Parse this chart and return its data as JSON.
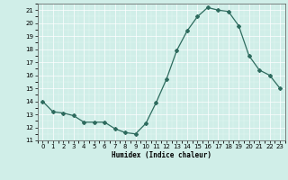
{
  "x": [
    0,
    1,
    2,
    3,
    4,
    5,
    6,
    7,
    8,
    9,
    10,
    11,
    12,
    13,
    14,
    15,
    16,
    17,
    18,
    19,
    20,
    21,
    22,
    23
  ],
  "y": [
    14,
    13.2,
    13.1,
    12.9,
    12.4,
    12.4,
    12.4,
    11.9,
    11.6,
    11.5,
    12.3,
    13.9,
    15.7,
    17.9,
    19.4,
    20.5,
    21.2,
    21.0,
    20.9,
    19.8,
    17.5,
    16.4,
    16.0,
    15.0
  ],
  "xlabel": "Humidex (Indice chaleur)",
  "ylim": [
    11,
    21.5
  ],
  "xlim": [
    -0.5,
    23.5
  ],
  "yticks": [
    11,
    12,
    13,
    14,
    15,
    16,
    17,
    18,
    19,
    20,
    21
  ],
  "xticks": [
    0,
    1,
    2,
    3,
    4,
    5,
    6,
    7,
    8,
    9,
    10,
    11,
    12,
    13,
    14,
    15,
    16,
    17,
    18,
    19,
    20,
    21,
    22,
    23
  ],
  "line_color": "#2e6b5e",
  "marker": "D",
  "marker_size": 2.0,
  "bg_color": "#d0eee8",
  "grid_color": "#ffffff",
  "grid_minor_color": "#e8f8f4"
}
